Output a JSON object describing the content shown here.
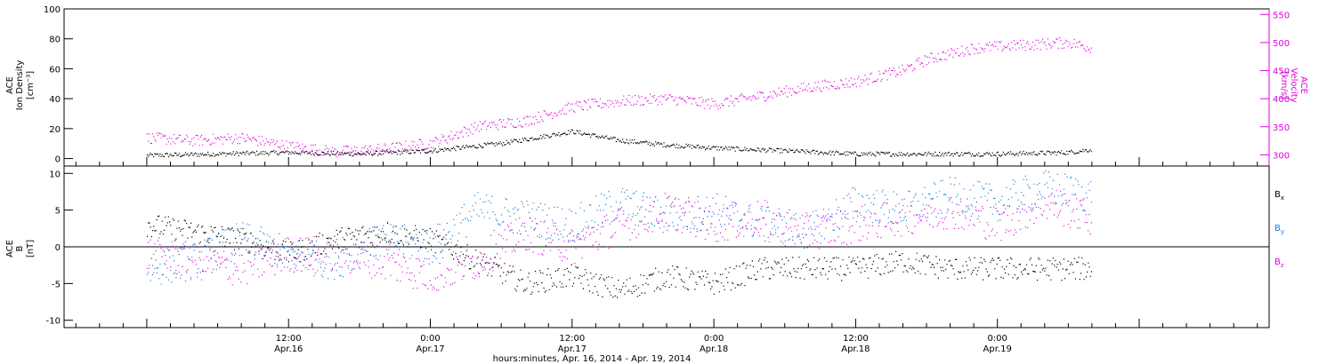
{
  "chart_data": [
    {
      "type": "scatter",
      "panel": "density-velocity",
      "ylabel_left": [
        "ACE",
        "Ion Density",
        "[cm⁻³]"
      ],
      "ylabel_right": [
        "ACE",
        "Velocity",
        "[km/s]"
      ],
      "ylim_left": [
        -5,
        100
      ],
      "yticks_left": [
        "0",
        "20",
        "40",
        "60",
        "80",
        "100"
      ],
      "ylim_right": [
        280,
        560
      ],
      "yticks_right": [
        "300",
        "350",
        "400",
        "450",
        "500",
        "550"
      ],
      "series": [
        {
          "name": "Ion Density",
          "color": "#000000",
          "axis": "left",
          "x_hours": [
            0,
            6,
            12,
            18,
            24,
            30,
            36,
            40,
            44,
            48,
            54,
            60,
            66,
            72,
            78,
            80
          ],
          "values": [
            2,
            3,
            4,
            3,
            5,
            10,
            18,
            12,
            9,
            7,
            5,
            3,
            3,
            3,
            4,
            6
          ]
        },
        {
          "name": "Velocity",
          "color": "#ff00ff",
          "axis": "right",
          "x_hours": [
            0,
            4,
            8,
            12,
            16,
            20,
            24,
            28,
            32,
            36,
            40,
            44,
            48,
            52,
            56,
            60,
            64,
            66,
            70,
            74,
            78,
            80
          ],
          "values": [
            330,
            325,
            330,
            315,
            305,
            310,
            320,
            350,
            360,
            385,
            395,
            400,
            390,
            405,
            420,
            430,
            450,
            470,
            490,
            495,
            500,
            490
          ]
        }
      ]
    },
    {
      "type": "scatter",
      "panel": "magnetic-field",
      "ylabel": [
        "ACE",
        "B",
        "[nT]"
      ],
      "ylim": [
        -11,
        11
      ],
      "yticks": [
        "-10",
        "-5",
        "0",
        "5",
        "10"
      ],
      "series": [
        {
          "name": "Bx",
          "label_main": "B",
          "label_sub": "x",
          "color": "#000000",
          "x_hours": [
            0,
            4,
            8,
            12,
            16,
            20,
            24,
            28,
            32,
            36,
            40,
            44,
            48,
            52,
            56,
            60,
            64,
            68,
            72,
            76,
            80
          ],
          "values": [
            3,
            2,
            1,
            -1,
            1,
            2,
            1,
            -2,
            -5,
            -4,
            -6,
            -4,
            -5,
            -3,
            -3,
            -3,
            -2,
            -3,
            -3,
            -3,
            -3
          ]
        },
        {
          "name": "By",
          "label_main": "B",
          "label_sub": "y",
          "color": "#2080e0",
          "x_hours": [
            0,
            4,
            8,
            12,
            16,
            20,
            24,
            28,
            32,
            36,
            40,
            44,
            48,
            52,
            56,
            60,
            64,
            68,
            72,
            76,
            80
          ],
          "values": [
            -3,
            -2,
            1,
            -1,
            -2,
            1,
            0,
            5,
            4,
            3,
            6,
            4,
            5,
            3,
            2,
            6,
            5,
            7,
            6,
            8,
            7
          ]
        },
        {
          "name": "Bz",
          "label_main": "B",
          "label_sub": "z",
          "color": "#ff00ff",
          "x_hours": [
            0,
            4,
            8,
            12,
            16,
            20,
            24,
            28,
            32,
            36,
            40,
            44,
            48,
            52,
            56,
            60,
            64,
            68,
            72,
            76,
            80
          ],
          "values": [
            -1,
            -2,
            -3,
            -1,
            -1,
            -2,
            -4,
            -2,
            2,
            0,
            3,
            5,
            3,
            4,
            2,
            3,
            4,
            5,
            3,
            6,
            4
          ]
        }
      ]
    }
  ],
  "x_axis": {
    "range_hours": [
      -7,
      95
    ],
    "major_ticks": [
      {
        "hour": 12,
        "time": "12:00",
        "date": "Apr.16"
      },
      {
        "hour": 24,
        "time": "0:00",
        "date": "Apr.17"
      },
      {
        "hour": 36,
        "time": "12:00",
        "date": "Apr.17"
      },
      {
        "hour": 48,
        "time": "0:00",
        "date": "Apr.18"
      },
      {
        "hour": 60,
        "time": "12:00",
        "date": "Apr.18"
      },
      {
        "hour": 72,
        "time": "0:00",
        "date": "Apr.19"
      }
    ],
    "xlabel": "hours:minutes, Apr. 16, 2014 - Apr. 19, 2014"
  }
}
